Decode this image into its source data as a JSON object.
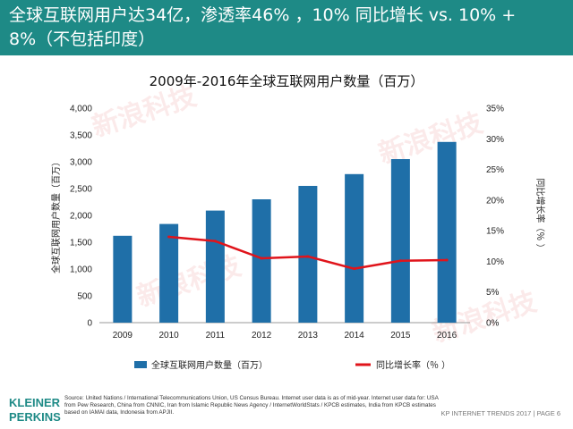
{
  "header": {
    "title": "全球互联网用户达34亿，渗透率46% ，10% 同比增长 vs. 10% + 8%（不包括印度）",
    "background": "#1e8a86"
  },
  "watermark": {
    "text": "新浪科技",
    "color": "#e04040"
  },
  "chart_data": {
    "type": "bar",
    "title": "2009年-2016年全球互联网用户数量（百万）",
    "categories": [
      "2009",
      "2010",
      "2011",
      "2012",
      "2013",
      "2014",
      "2015",
      "2016"
    ],
    "series": [
      {
        "name": "全球互联网用户数量（百万）",
        "type": "bar",
        "axis": "left",
        "color": "#1f6fa8",
        "values": [
          1620,
          1840,
          2090,
          2300,
          2550,
          2770,
          3050,
          3370
        ]
      },
      {
        "name": "同比增长率（％ ）",
        "type": "line",
        "axis": "right",
        "color": "#e0141b",
        "values": [
          null,
          14.0,
          13.3,
          10.5,
          10.8,
          8.8,
          10.1,
          10.2
        ]
      }
    ],
    "ylabel": "全球互联网用户数量（百万）",
    "ylabel_right": "同比增长率（％ ）",
    "ylim": [
      0,
      4000
    ],
    "ylim_right": [
      0,
      35
    ],
    "yticks": [
      "0",
      "500",
      "1,000",
      "1,500",
      "2,000",
      "2,500",
      "3,000",
      "3,500",
      "4,000"
    ],
    "yticks_right": [
      "0%",
      "5%",
      "10%",
      "15%",
      "20%",
      "25%",
      "30%",
      "35%"
    ],
    "grid": false,
    "legend": "bottom"
  },
  "footer": {
    "logo": "KLEINER PERKINS",
    "source": "Source: United Nations / International Telecommunications Union, US Census Bureau. Internet user data is as of mid-year. Internet user data for: USA from Pew Research, China from CNNIC, Iran from Islamic Republic News Agency / InternetWorldStats / KPCB estimates, India from KPCB estimates based on IAMAI data, Indonesia from APJII.",
    "page": "KP INTERNET TRENDS 2017  |  PAGE 6"
  }
}
